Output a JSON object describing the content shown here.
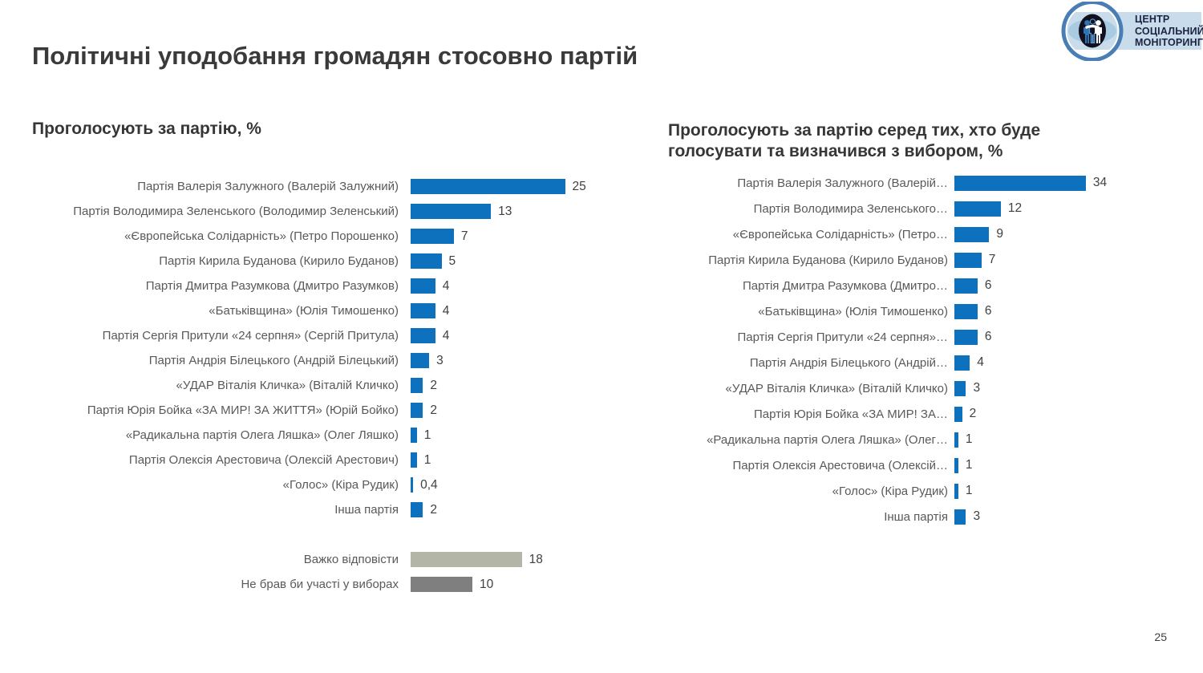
{
  "slide": {
    "title": "Політичні уподобання громадян стосовно партій",
    "page_number": "25"
  },
  "logo": {
    "org_name": "Центр Соціальний Моніторинг",
    "lines": [
      "ЦЕНТР",
      "СОЦІАЛЬНИЙ",
      "МОНІТОРИНГ"
    ]
  },
  "colors": {
    "bar_blue": "#0d71be",
    "bar_light_gray": "#b3b6a6",
    "bar_dark_gray": "#7f7f7f",
    "title_text": "#3a3a3a",
    "label_text": "#595959"
  },
  "chart_data": [
    {
      "type": "bar",
      "orientation": "horizontal",
      "title": "Проголосують за партію, %",
      "legend": "none",
      "grid": false,
      "xlim": [
        0,
        26
      ],
      "categories": [
        "Партія Валерія Залужного (Валерій Залужний)",
        "Партія Володимира Зеленського (Володимир Зеленський)",
        "«Європейська Солідарність» (Петро Порошенко)",
        "Партія Кирила Буданова (Кирило Буданов)",
        "Партія Дмитра Разумкова (Дмитро Разумков)",
        "«Батьківщина» (Юлія Тимошенко)",
        "Партія Сергія Притули «24 серпня» (Сергій Притула)",
        "Партія Андрія Білецького (Андрій Білецький)",
        "«УДАР Віталія Кличка» (Віталій Кличко)",
        "Партія Юрія Бойка «ЗА МИР! ЗА ЖИТТЯ» (Юрій Бойко)",
        "«Радикальна партія Олега Ляшка» (Олег Ляшко)",
        "Партія Олексія Арестовича (Олексій Арестович)",
        "«Голос» (Кіра Рудик)",
        "Інша партія"
      ],
      "values": [
        25,
        13,
        7,
        5,
        4,
        4,
        4,
        3,
        2,
        2,
        1,
        1,
        0.4,
        2
      ],
      "value_labels": [
        "25",
        "13",
        "7",
        "5",
        "4",
        "4",
        "4",
        "3",
        "2",
        "2",
        "1",
        "1",
        "0,4",
        "2"
      ],
      "extra_rows": [
        {
          "label": "Важко відповісти",
          "value": 18,
          "value_label": "18",
          "color_key": "bar_light_gray"
        },
        {
          "label": "Не брав би участі у виборах",
          "value": 10,
          "value_label": "10",
          "color_key": "bar_dark_gray"
        }
      ]
    },
    {
      "type": "bar",
      "orientation": "horizontal",
      "title": "Проголосують за партію серед тих, хто буде голосувати та визначився з вибором, %",
      "legend": "none",
      "grid": false,
      "xlim": [
        0,
        35
      ],
      "categories": [
        "Партія Валерія Залужного (Валерій…",
        "Партія Володимира Зеленського…",
        "«Європейська Солідарність» (Петро…",
        "Партія Кирила Буданова (Кирило Буданов)",
        "Партія Дмитра Разумкова (Дмитро…",
        "«Батьківщина» (Юлія Тимошенко)",
        "Партія Сергія Притули «24 серпня»…",
        "Партія Андрія Білецького (Андрій…",
        "«УДАР Віталія Кличка» (Віталій Кличко)",
        "Партія Юрія Бойка «ЗА МИР! ЗА…",
        "«Радикальна партія Олега Ляшка» (Олег…",
        "Партія Олексія Арестовича (Олексій…",
        "«Голос» (Кіра Рудик)",
        "Інша партія"
      ],
      "values": [
        34,
        12,
        9,
        7,
        6,
        6,
        6,
        4,
        3,
        2,
        1,
        1,
        1,
        3
      ],
      "value_labels": [
        "34",
        "12",
        "9",
        "7",
        "6",
        "6",
        "6",
        "4",
        "3",
        "2",
        "1",
        "1",
        "1",
        "3"
      ]
    }
  ]
}
